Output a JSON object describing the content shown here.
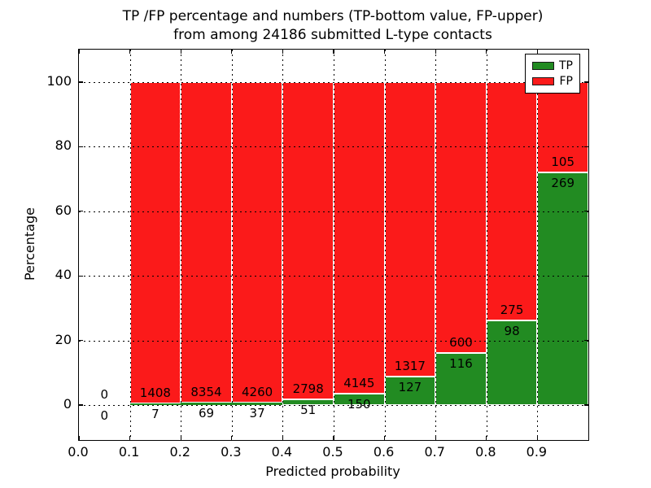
{
  "figure": {
    "title_line1": "TP /FP percentage and numbers (TP-bottom value, FP-upper)",
    "title_line2": "from among 24186 submitted L-type contacts"
  },
  "axes": {
    "xlabel": "Predicted probability",
    "ylabel": "Percentage",
    "x_tick_labels": [
      "0.0",
      "0.1",
      "0.2",
      "0.3",
      "0.4",
      "0.5",
      "0.6",
      "0.7",
      "0.8",
      "0.9"
    ],
    "y_tick_labels": [
      "0",
      "20",
      "40",
      "60",
      "80",
      "100"
    ]
  },
  "legend": {
    "position": "upper right",
    "items": [
      {
        "label": "TP",
        "color": "#228b22"
      },
      {
        "label": "FP",
        "color": "#fb1a1a"
      }
    ]
  },
  "chart_data": {
    "type": "bar",
    "stacked": true,
    "title": "TP /FP percentage and numbers (TP-bottom value, FP-upper) from among 24186 submitted L-type contacts",
    "xlabel": "Predicted probability",
    "ylabel": "Percentage",
    "total_contacts": 24186,
    "bin_width": 0.1,
    "bin_starts": [
      0.0,
      0.1,
      0.2,
      0.3,
      0.4,
      0.5,
      0.6,
      0.7,
      0.8,
      0.9
    ],
    "series": [
      {
        "name": "TP",
        "color": "#228b22",
        "counts": [
          0,
          7,
          69,
          37,
          51,
          150,
          127,
          116,
          98,
          269
        ]
      },
      {
        "name": "FP",
        "color": "#fb1a1a",
        "counts": [
          0,
          1408,
          8354,
          4260,
          2798,
          4145,
          1317,
          600,
          275,
          105
        ]
      }
    ],
    "value_labels": "FP count above TP-bar top, TP count below TP-bar top; bins with zero total show 0/0 and no bar",
    "percent_mode": "each nonempty bin stacked to 100%",
    "xlim": [
      0.0,
      1.0
    ],
    "ylim": [
      -10.8,
      109.6
    ],
    "xticks": [
      0.0,
      0.1,
      0.2,
      0.3,
      0.4,
      0.5,
      0.6,
      0.7,
      0.8,
      0.9
    ],
    "yticks": [
      0,
      20,
      40,
      60,
      80,
      100
    ],
    "grid": true,
    "grid_style": "dotted, drawn above bars",
    "legend_position": "upper right"
  }
}
